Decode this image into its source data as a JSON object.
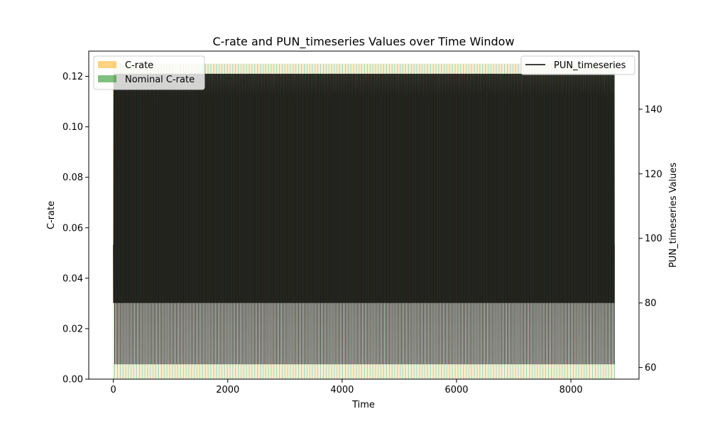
{
  "chart_data": {
    "type": "bar",
    "title": "C-rate and PUN_timeseries Values over Time Window",
    "xlabel": "Time",
    "ylabel_left": "C-rate",
    "ylabel_right": "PUN_timeseries Values",
    "xlim": [
      -430,
      9190
    ],
    "ylim_left": [
      0.0,
      0.13
    ],
    "ylim_right": [
      56.4,
      158
    ],
    "x_ticks": [
      0,
      2000,
      4000,
      6000,
      8000
    ],
    "x_tick_labels": [
      "0",
      "2000",
      "4000",
      "6000",
      "8000"
    ],
    "left_ticks": [
      0.0,
      0.02,
      0.04,
      0.06,
      0.08,
      0.1,
      0.12
    ],
    "left_tick_labels": [
      "0.00",
      "0.02",
      "0.04",
      "0.06",
      "0.08",
      "0.10",
      "0.12"
    ],
    "right_ticks": [
      60,
      80,
      100,
      120,
      140
    ],
    "right_tick_labels": [
      "60",
      "80",
      "100",
      "120",
      "140"
    ],
    "series": [
      {
        "name": "C-rate",
        "axis": "left",
        "kind": "bar",
        "color": "#ffa500",
        "opacity": 0.5,
        "period_hours": 48,
        "x_start": 0,
        "x_end": 8760,
        "values_min": 0.0,
        "values_max": 0.125,
        "typical_values": [
          0.0,
          0.125
        ]
      },
      {
        "name": "Nominal C-rate",
        "axis": "left",
        "kind": "bar",
        "color": "#008000",
        "opacity": 0.5,
        "period_hours": 48,
        "x_start": 0,
        "x_end": 8760,
        "values_min": 0.0,
        "values_max": 0.125,
        "typical_values": [
          0.0,
          0.125
        ]
      },
      {
        "name": "PUN_timeseries",
        "axis": "right",
        "kind": "line",
        "color": "#000000",
        "period_hours": 24,
        "x_start": 0,
        "x_end": 8760,
        "values_min": 61.1,
        "values_max": 151.3,
        "daily_profile": [
          98,
          92,
          85,
          80,
          82,
          90,
          110,
          130,
          145,
          151,
          140,
          120,
          100,
          88,
          80,
          85,
          100,
          125,
          148,
          151,
          135,
          115,
          100,
          61
        ]
      }
    ],
    "legend_left": {
      "location": "upper left",
      "entries": [
        "C-rate",
        "Nominal C-rate"
      ]
    },
    "legend_right": {
      "location": "upper right",
      "entries": [
        "PUN_timeseries"
      ]
    },
    "grid": false
  }
}
